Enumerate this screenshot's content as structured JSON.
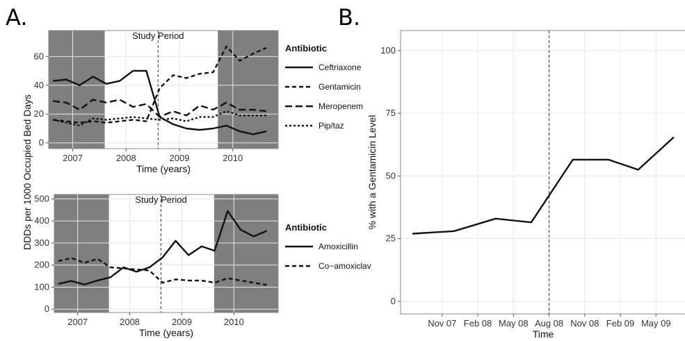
{
  "panel_labels": {
    "a": "A.",
    "b": "B."
  },
  "study_period_label": "Study Period",
  "colors": {
    "shade": "#7f7f7f",
    "line": "#111111",
    "grid": "#e6e6e6",
    "panel_bg": "#ffffff"
  },
  "chart_data": [
    {
      "id": "top",
      "type": "line",
      "xlabel": "Time (years)",
      "ylabel": "DDDs per 1000 Occupied Bed Days",
      "xlim": [
        2006.55,
        2010.85
      ],
      "ylim": [
        -4,
        78
      ],
      "xticks": [
        {
          "v": 2007.0,
          "label": "2007"
        },
        {
          "v": 2008.0,
          "label": "2008"
        },
        {
          "v": 2009.0,
          "label": "2009"
        },
        {
          "v": 2010.0,
          "label": "2010"
        }
      ],
      "yticks": [
        0,
        20,
        40,
        60
      ],
      "shaded": [
        [
          2006.55,
          2007.6
        ],
        [
          2009.72,
          2010.85
        ]
      ],
      "study_period_marker": 2008.6,
      "legend_title": "Antibiotic",
      "x": [
        2006.63,
        2006.88,
        2007.13,
        2007.38,
        2007.63,
        2007.88,
        2008.13,
        2008.38,
        2008.63,
        2008.88,
        2009.13,
        2009.38,
        2009.63,
        2009.88,
        2010.13,
        2010.38,
        2010.63
      ],
      "series": [
        {
          "name": "Ceftriaxone",
          "dash": "solid",
          "values": [
            43,
            44,
            40,
            46,
            41,
            43,
            50,
            50,
            18,
            13,
            10,
            9,
            10,
            12,
            8,
            6,
            8
          ]
        },
        {
          "name": "Gentamicin",
          "dash": "dashed",
          "values": [
            16,
            15,
            14,
            15,
            14,
            15,
            16,
            15,
            38,
            47,
            45,
            48,
            49,
            67,
            57,
            62,
            66
          ]
        },
        {
          "name": "Meropenem",
          "dash": "longdash",
          "values": [
            29,
            28,
            23,
            30,
            28,
            30,
            25,
            27,
            18,
            22,
            19,
            26,
            23,
            28,
            23,
            23,
            22
          ]
        },
        {
          "name": "Pip/taz",
          "dash": "dotted",
          "values": [
            16,
            14,
            12,
            17,
            16,
            17,
            18,
            17,
            16,
            17,
            15,
            18,
            18,
            22,
            19,
            19,
            19
          ]
        }
      ]
    },
    {
      "id": "bottom",
      "type": "line",
      "xlabel": "Time (years)",
      "ylabel": "DDDs per 1000 Occupied Bed Days",
      "xlim": [
        2006.55,
        2010.85
      ],
      "ylim": [
        -15,
        520
      ],
      "xticks": [
        {
          "v": 2007.0,
          "label": "2007"
        },
        {
          "v": 2008.0,
          "label": "2008"
        },
        {
          "v": 2009.0,
          "label": "2009"
        },
        {
          "v": 2010.0,
          "label": "2010"
        }
      ],
      "yticks": [
        0,
        100,
        200,
        300,
        400,
        500
      ],
      "shaded": [
        [
          2006.55,
          2007.6
        ],
        [
          2009.62,
          2010.85
        ]
      ],
      "study_period_marker": 2008.6,
      "legend_title": "Antibiotic",
      "x": [
        2006.63,
        2006.88,
        2007.13,
        2007.38,
        2007.63,
        2007.88,
        2008.13,
        2008.38,
        2008.63,
        2008.88,
        2009.13,
        2009.38,
        2009.63,
        2009.88,
        2010.13,
        2010.38,
        2010.63
      ],
      "series": [
        {
          "name": "Amoxicillin",
          "dash": "solid",
          "values": [
            115,
            128,
            112,
            130,
            145,
            190,
            170,
            190,
            235,
            310,
            245,
            285,
            265,
            445,
            360,
            330,
            355
          ]
        },
        {
          "name": "Co−amoxiclav",
          "dash": "dashed",
          "values": [
            218,
            232,
            210,
            228,
            190,
            185,
            180,
            175,
            120,
            135,
            130,
            130,
            120,
            140,
            130,
            120,
            110
          ]
        }
      ]
    },
    {
      "id": "right",
      "type": "line",
      "xlabel": "Time",
      "ylabel": "% with a Gentamicin Level",
      "xlim": [
        -1.5,
        22.5
      ],
      "ylim": [
        -5,
        108
      ],
      "xticks": [
        {
          "v": 2,
          "label": "Nov 07"
        },
        {
          "v": 5,
          "label": "Feb 08"
        },
        {
          "v": 8,
          "label": "May 08"
        },
        {
          "v": 11,
          "label": "Aug 08"
        },
        {
          "v": 14,
          "label": "Nov 08"
        },
        {
          "v": 17,
          "label": "Feb 09"
        },
        {
          "v": 20,
          "label": "May 09"
        }
      ],
      "yticks": [
        0,
        25,
        50,
        75,
        100
      ],
      "study_period_marker": 11,
      "x": [
        -0.5,
        3,
        6.5,
        9.5,
        13,
        16,
        18.5,
        21.5
      ],
      "series": [
        {
          "values": [
            27,
            28,
            33,
            31.5,
            56.5,
            56.5,
            52.5,
            65.5
          ]
        }
      ]
    }
  ]
}
